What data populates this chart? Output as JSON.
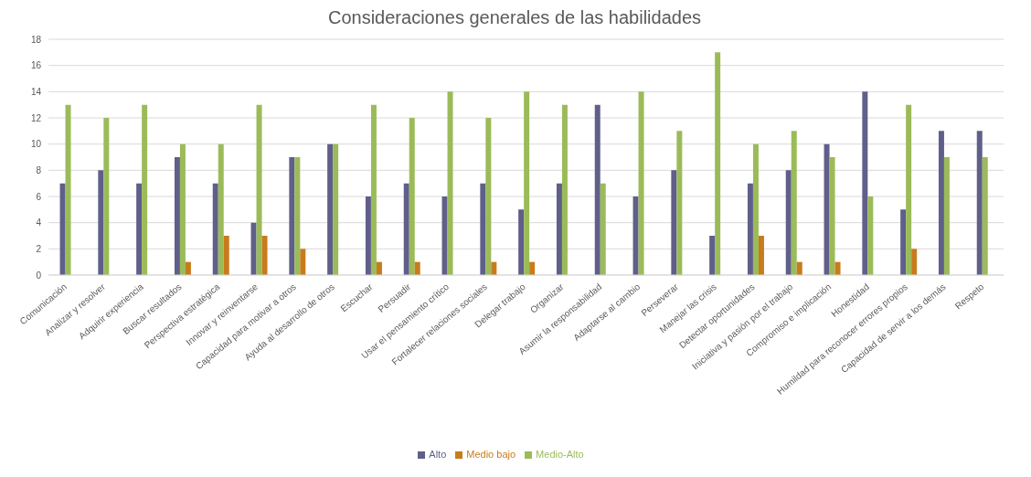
{
  "chart_data": {
    "type": "bar",
    "title": "Consideraciones generales de las habilidades",
    "categories": [
      "Comunicación",
      "Analizar y resolver",
      "Adquirir experiencia",
      "Buscar resultados",
      "Perspectiva estratégica",
      "Innovar y reinventarse",
      "Capacidad para motivar a otros",
      "Ayuda al desarrollo de otros",
      "Escuchar",
      "Persuadir",
      "Usar el pensamiento crítico",
      "Fortalecer relaciones sociales",
      "Delegar trabajo",
      "Organizar",
      "Asumir la responsabilidad",
      "Adaptarse al cambio",
      "Perseverar",
      "Manejar las crisis",
      "Detectar oportunidades",
      "Iniciativa y pasión por el trabajo",
      "Compromiso e implicación",
      "Honestidad",
      "Humildad para reconocer errores propios",
      "Capacidad de servir a los demás",
      "Respeto"
    ],
    "series": [
      {
        "name": "Alto",
        "color": "#5f5f8a",
        "values": [
          7,
          8,
          7,
          9,
          7,
          4,
          9,
          10,
          6,
          7,
          6,
          7,
          5,
          7,
          13,
          6,
          8,
          3,
          7,
          8,
          10,
          14,
          5,
          11,
          11
        ]
      },
      {
        "name": "Medio-Alto",
        "color": "#9bbb59",
        "values": [
          13,
          12,
          13,
          10,
          10,
          13,
          9,
          10,
          13,
          12,
          14,
          12,
          14,
          13,
          7,
          14,
          11,
          17,
          10,
          11,
          9,
          6,
          13,
          9,
          9
        ]
      },
      {
        "name": "Medio bajo",
        "color": "#c77c1c",
        "values": [
          0,
          0,
          0,
          1,
          3,
          3,
          2,
          0,
          1,
          1,
          0,
          1,
          1,
          0,
          0,
          0,
          0,
          0,
          3,
          1,
          1,
          0,
          2,
          0,
          0
        ]
      }
    ],
    "ylim": [
      0,
      18
    ],
    "yticks": [
      0,
      2,
      4,
      6,
      8,
      10,
      12,
      14,
      16,
      18
    ],
    "grid": "y",
    "legend": "bottom"
  }
}
